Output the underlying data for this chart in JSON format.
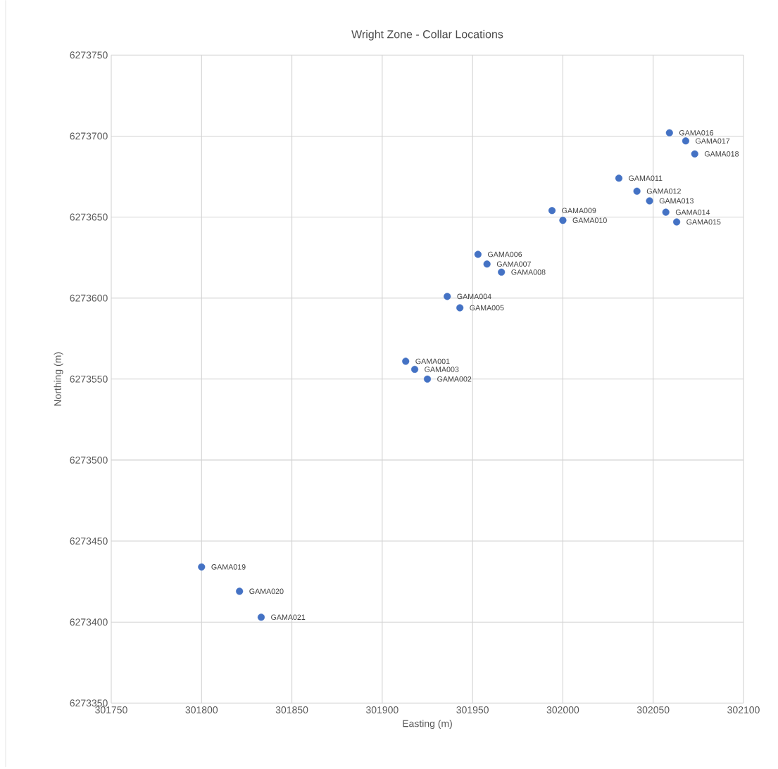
{
  "chart_data": {
    "type": "scatter",
    "title": "Wright Zone - Collar Locations",
    "xlabel": "Easting (m)",
    "ylabel": "Northing (m)",
    "x": [
      301913,
      301925,
      301918,
      301936,
      301943,
      301953,
      301958,
      301966,
      301994,
      302000,
      302031,
      302041,
      302048,
      302057,
      302063,
      302059,
      302068,
      302073,
      301800,
      301821,
      301833
    ],
    "series": [
      {
        "color": "#4472c4",
        "values": [
          6273561,
          6273550,
          6273556,
          6273601,
          6273594,
          6273627,
          6273621,
          6273616,
          6273654,
          6273648,
          6273674,
          6273666,
          6273660,
          6273653,
          6273647,
          6273702,
          6273697,
          6273689,
          6273434,
          6273419,
          6273403
        ]
      }
    ],
    "annotations": [
      {
        "text": "GAMA001",
        "x": 301913,
        "y": 6273561
      },
      {
        "text": "GAMA002",
        "x": 301925,
        "y": 6273550
      },
      {
        "text": "GAMA003",
        "x": 301918,
        "y": 6273556
      },
      {
        "text": "GAMA004",
        "x": 301936,
        "y": 6273601
      },
      {
        "text": "GAMA005",
        "x": 301943,
        "y": 6273594
      },
      {
        "text": "GAMA006",
        "x": 301953,
        "y": 6273627
      },
      {
        "text": "GAMA007",
        "x": 301958,
        "y": 6273621
      },
      {
        "text": "GAMA008",
        "x": 301966,
        "y": 6273616
      },
      {
        "text": "GAMA009",
        "x": 301994,
        "y": 6273654
      },
      {
        "text": "GAMA010",
        "x": 302000,
        "y": 6273648
      },
      {
        "text": "GAMA011",
        "x": 302031,
        "y": 6273674
      },
      {
        "text": "GAMA012",
        "x": 302041,
        "y": 6273666
      },
      {
        "text": "GAMA013",
        "x": 302048,
        "y": 6273660
      },
      {
        "text": "GAMA014",
        "x": 302057,
        "y": 6273653
      },
      {
        "text": "GAMA015",
        "x": 302063,
        "y": 6273647
      },
      {
        "text": "GAMA016",
        "x": 302059,
        "y": 6273702
      },
      {
        "text": "GAMA017",
        "x": 302068,
        "y": 6273697
      },
      {
        "text": "GAMA018",
        "x": 302073,
        "y": 6273689
      },
      {
        "text": "GAMA019",
        "x": 301800,
        "y": 6273434
      },
      {
        "text": "GAMA020",
        "x": 301821,
        "y": 6273419
      },
      {
        "text": "GAMA021",
        "x": 301833,
        "y": 6273403
      }
    ],
    "xlim": [
      301750,
      302100
    ],
    "ylim": [
      6273350,
      6273750
    ],
    "xticks": [
      301750,
      301800,
      301850,
      301900,
      301950,
      302000,
      302050,
      302100
    ],
    "yticks": [
      6273350,
      6273400,
      6273450,
      6273500,
      6273550,
      6273600,
      6273650,
      6273700,
      6273750
    ],
    "grid": true,
    "marker": "circle"
  }
}
